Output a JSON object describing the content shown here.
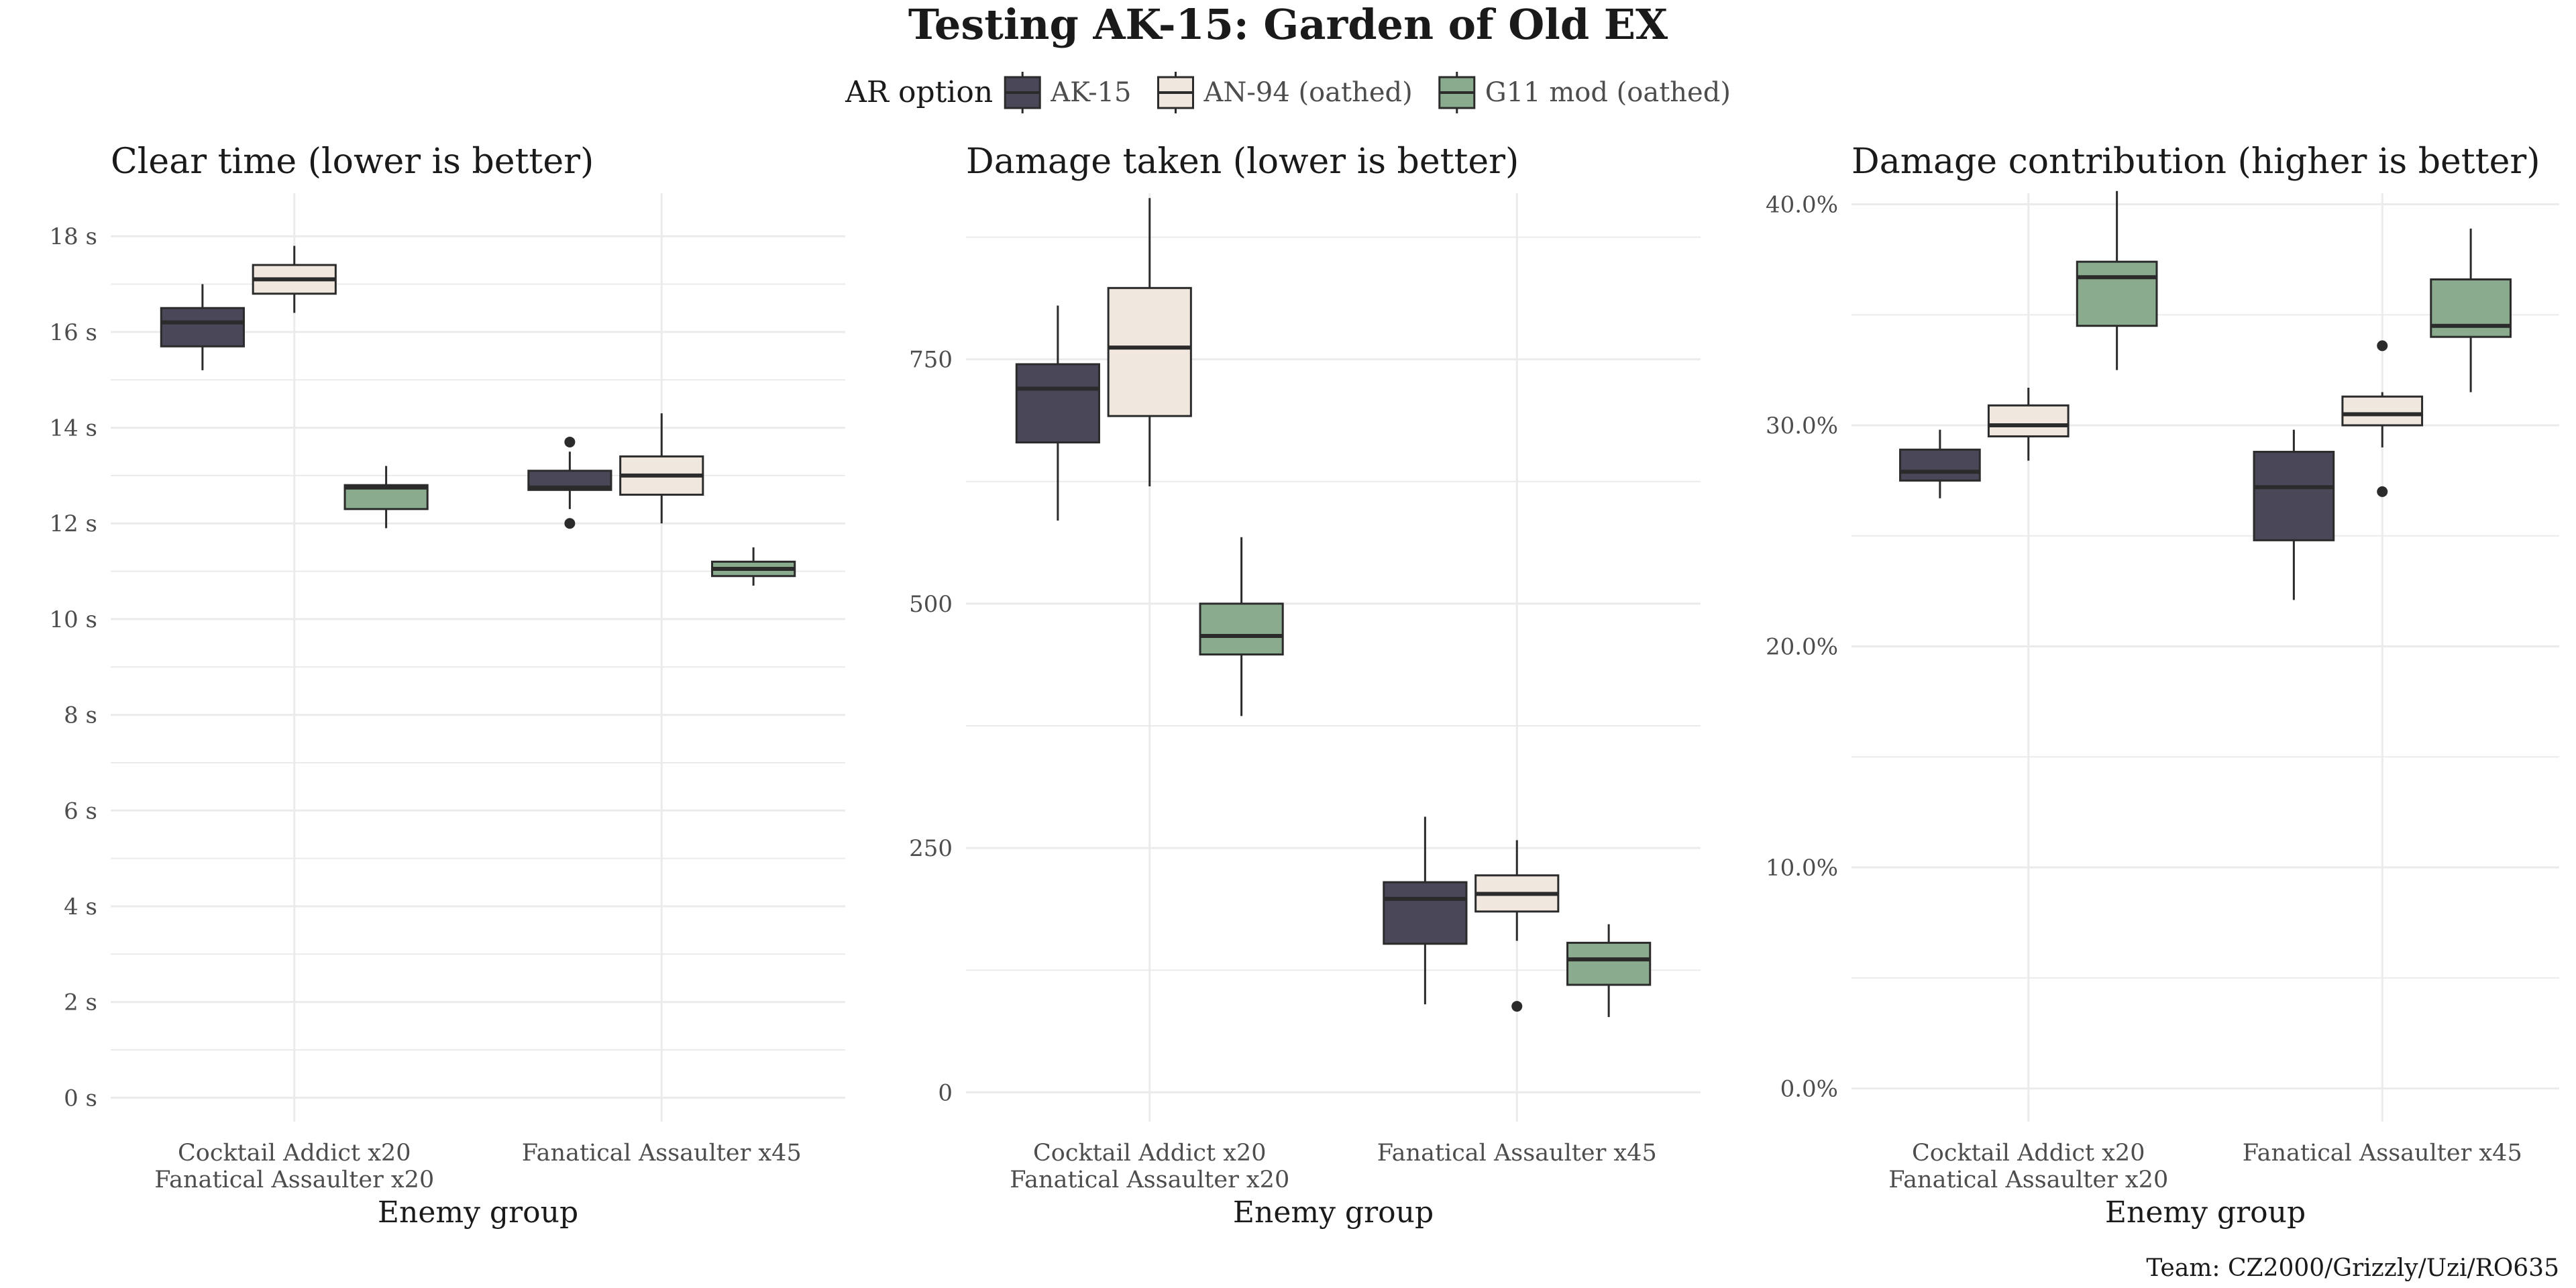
{
  "figure": {
    "title": "Testing AK-15: Garden of Old EX",
    "caption": "Team: CZ2000/Grizzly/Uzi/RO635"
  },
  "legend": {
    "title": "AR option",
    "placement": "top-center",
    "entries": [
      {
        "name": "AK-15",
        "color": "#4a4858"
      },
      {
        "name": "AN-94 (oathed)",
        "color": "#f0e7df"
      },
      {
        "name": "G11 mod (oathed)",
        "color": "#8aab8e"
      }
    ]
  },
  "colors": {
    "grid": "#ebebeb",
    "box_stroke": "#2b2b2b",
    "axis_text": "#4d4d4d"
  },
  "chart_data": [
    {
      "type": "boxplot",
      "title": "Clear time (lower is better)",
      "xlabel": "Enemy group",
      "ylabel": "",
      "categories": [
        [
          "Cocktail Addict x20",
          "Fanatical Assaulter x20"
        ],
        [
          "Fanatical Assaulter x45"
        ]
      ],
      "ylim": [
        -0.5,
        18.9
      ],
      "yticks": [
        0,
        2,
        4,
        6,
        8,
        10,
        12,
        14,
        16,
        18
      ],
      "yticklabels": [
        "0 s",
        "2 s",
        "4 s",
        "6 s",
        "8 s",
        "10 s",
        "12 s",
        "14 s",
        "16 s",
        "18 s"
      ],
      "grid": true,
      "series": [
        {
          "name": "AK-15",
          "boxes": [
            {
              "min": 15.2,
              "q1": 15.7,
              "median": 16.2,
              "q3": 16.5,
              "max": 17.0,
              "outliers": []
            },
            {
              "min": 12.3,
              "q1": 12.7,
              "median": 12.75,
              "q3": 13.1,
              "max": 13.5,
              "outliers": [
                13.7,
                12.0
              ]
            }
          ]
        },
        {
          "name": "AN-94 (oathed)",
          "boxes": [
            {
              "min": 16.4,
              "q1": 16.8,
              "median": 17.1,
              "q3": 17.4,
              "max": 17.8,
              "outliers": []
            },
            {
              "min": 12.0,
              "q1": 12.6,
              "median": 13.0,
              "q3": 13.4,
              "max": 14.3,
              "outliers": []
            }
          ]
        },
        {
          "name": "G11 mod (oathed)",
          "boxes": [
            {
              "min": 11.9,
              "q1": 12.3,
              "median": 12.75,
              "q3": 12.8,
              "max": 13.2,
              "outliers": []
            },
            {
              "min": 10.7,
              "q1": 10.9,
              "median": 11.05,
              "q3": 11.2,
              "max": 11.5,
              "outliers": []
            }
          ]
        }
      ]
    },
    {
      "type": "boxplot",
      "title": "Damage taken (lower is better)",
      "xlabel": "Enemy group",
      "ylabel": "",
      "categories": [
        [
          "Cocktail Addict x20",
          "Fanatical Assaulter x20"
        ],
        [
          "Fanatical Assaulter x45"
        ]
      ],
      "ylim": [
        -30,
        920
      ],
      "yticks": [
        0,
        250,
        500,
        750
      ],
      "yticklabels": [
        "0",
        "250",
        "500",
        "750"
      ],
      "minor_gridlines": [
        125,
        375,
        625,
        875
      ],
      "grid": true,
      "series": [
        {
          "name": "AK-15",
          "boxes": [
            {
              "min": 585,
              "q1": 665,
              "median": 720,
              "q3": 745,
              "max": 805,
              "outliers": []
            },
            {
              "min": 90,
              "q1": 152,
              "median": 198,
              "q3": 215,
              "max": 282,
              "outliers": []
            }
          ]
        },
        {
          "name": "AN-94 (oathed)",
          "boxes": [
            {
              "min": 620,
              "q1": 692,
              "median": 762,
              "q3": 823,
              "max": 915,
              "outliers": []
            },
            {
              "min": 155,
              "q1": 185,
              "median": 203,
              "q3": 222,
              "max": 258,
              "outliers": [
                88
              ]
            }
          ]
        },
        {
          "name": "G11 mod (oathed)",
          "boxes": [
            {
              "min": 385,
              "q1": 448,
              "median": 467,
              "q3": 500,
              "max": 568,
              "outliers": []
            },
            {
              "min": 77,
              "q1": 110,
              "median": 136,
              "q3": 153,
              "max": 172,
              "outliers": []
            }
          ]
        }
      ]
    },
    {
      "type": "boxplot",
      "title": "Damage contribution (higher is better)",
      "xlabel": "Enemy group",
      "ylabel": "",
      "categories": [
        [
          "Cocktail Addict x20",
          "Fanatical Assaulter x20"
        ],
        [
          "Fanatical Assaulter x45"
        ]
      ],
      "ylim": [
        -0.015,
        0.405
      ],
      "yticks": [
        0.0,
        0.1,
        0.2,
        0.3,
        0.4
      ],
      "yticklabels": [
        "0.0%",
        "10.0%",
        "20.0%",
        "30.0%",
        "40.0%"
      ],
      "minor_gridlines": [
        0.05,
        0.15,
        0.25,
        0.35
      ],
      "grid": true,
      "series": [
        {
          "name": "AK-15",
          "boxes": [
            {
              "min": 0.267,
              "q1": 0.275,
              "median": 0.279,
              "q3": 0.289,
              "max": 0.298,
              "outliers": []
            },
            {
              "min": 0.221,
              "q1": 0.248,
              "median": 0.272,
              "q3": 0.288,
              "max": 0.298,
              "outliers": []
            }
          ]
        },
        {
          "name": "AN-94 (oathed)",
          "boxes": [
            {
              "min": 0.284,
              "q1": 0.295,
              "median": 0.3,
              "q3": 0.309,
              "max": 0.317,
              "outliers": []
            },
            {
              "min": 0.29,
              "q1": 0.3,
              "median": 0.305,
              "q3": 0.313,
              "max": 0.315,
              "outliers": [
                0.336,
                0.27
              ]
            }
          ]
        },
        {
          "name": "G11 mod (oathed)",
          "boxes": [
            {
              "min": 0.325,
              "q1": 0.345,
              "median": 0.367,
              "q3": 0.374,
              "max": 0.406,
              "outliers": []
            },
            {
              "min": 0.315,
              "q1": 0.34,
              "median": 0.345,
              "q3": 0.366,
              "max": 0.389,
              "outliers": []
            }
          ]
        }
      ]
    }
  ]
}
